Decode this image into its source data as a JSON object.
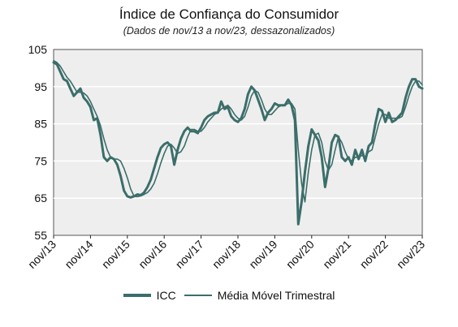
{
  "chart_data": {
    "type": "line",
    "title": "Índice de Confiança do Consumidor",
    "subtitle": "(Dados de nov/13 a nov/23, dessazonalizados)",
    "xlabel": "",
    "ylabel": "",
    "ylim": [
      55,
      105
    ],
    "yticks": [
      55,
      65,
      75,
      85,
      95,
      105
    ],
    "xticks": [
      "nov/13",
      "nov/14",
      "nov/15",
      "nov/16",
      "nov/17",
      "nov/18",
      "nov/19",
      "nov/20",
      "nov/21",
      "nov/22",
      "nov/23"
    ],
    "grid": true,
    "legend_position": "bottom",
    "colors": {
      "line": "#3b6e6a",
      "plot_bg": "#eeeeee",
      "grid": "#ffffff",
      "axis": "#222222"
    },
    "series": [
      {
        "name": "ICC",
        "values": [
          101.5,
          101,
          99,
          97,
          96.5,
          94.5,
          92.5,
          93.5,
          94.5,
          92,
          91,
          89.5,
          86,
          86.5,
          82,
          76,
          75,
          76,
          75.5,
          74,
          71,
          67,
          65.5,
          65.2,
          65.5,
          66,
          65.8,
          66.5,
          68,
          70,
          73,
          76,
          78.5,
          79.5,
          80,
          79,
          74,
          78,
          81,
          83,
          84,
          83,
          83,
          82.5,
          84,
          86,
          87,
          87.5,
          88,
          88,
          91,
          89,
          89.5,
          87,
          86,
          85.5,
          86.5,
          89,
          93,
          95,
          94,
          91.5,
          89,
          86,
          88,
          89,
          90.5,
          90,
          90,
          90,
          91.5,
          90,
          86,
          58,
          64,
          72,
          79,
          83.5,
          82,
          80.5,
          76,
          68,
          73,
          80,
          82,
          81.5,
          76,
          75,
          76,
          74,
          78,
          75.5,
          78,
          75,
          79,
          80,
          85,
          89,
          88.5,
          85.5,
          88,
          85.5,
          86,
          87,
          88,
          92,
          95,
          97,
          97,
          95,
          94.5
        ],
        "line_width": 3
      },
      {
        "name": "Média Móvel Trimestral",
        "values": [
          102,
          101.5,
          100.5,
          99,
          97.5,
          96.5,
          95,
          93.5,
          93.5,
          93.3,
          92.5,
          91,
          89,
          87,
          84.5,
          81,
          78,
          76,
          75.5,
          75.5,
          75,
          73,
          70.5,
          67.5,
          65.5,
          65.4,
          65.6,
          66,
          66.5,
          67.5,
          69,
          71.5,
          74.5,
          77,
          79,
          79.5,
          78.5,
          77,
          77.5,
          79,
          81.5,
          83.5,
          83.5,
          83,
          83,
          84,
          85.5,
          86.5,
          87.5,
          88,
          89,
          89.5,
          90,
          89,
          87.5,
          86.5,
          86,
          87,
          89.5,
          92.5,
          94,
          93.5,
          91.5,
          89,
          87.5,
          87.5,
          88.5,
          89.5,
          90,
          90,
          90.5,
          90.5,
          89,
          78,
          69,
          64,
          72,
          78,
          82,
          82.5,
          80,
          75,
          72.5,
          74,
          78,
          81.5,
          80,
          77.5,
          75.5,
          75,
          76,
          76,
          76.5,
          76,
          77.5,
          78,
          81.5,
          85,
          87.5,
          87.5,
          86.5,
          86.5,
          86.5,
          86.5,
          87,
          89.5,
          92.5,
          95,
          96.5,
          96.5,
          95.5
        ],
        "line_width": 1.6
      }
    ]
  }
}
